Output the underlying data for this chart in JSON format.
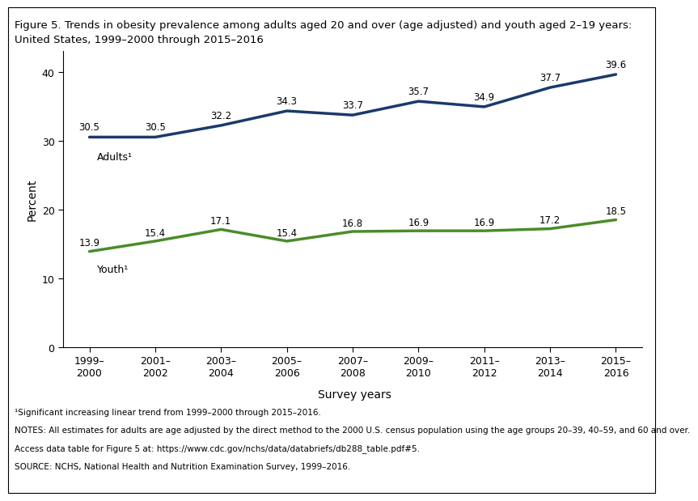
{
  "title_line1": "Figure 5. Trends in obesity prevalence among adults aged 20 and over (age adjusted) and youth aged 2–19 years:",
  "title_line2": "United States, 1999–2000 through 2015–2016",
  "xlabel": "Survey years",
  "ylabel": "Percent",
  "x_labels": [
    "1999–\n2000",
    "2001–\n2002",
    "2003–\n2004",
    "2005–\n2006",
    "2007–\n2008",
    "2009–\n2010",
    "2011–\n2012",
    "2013–\n2014",
    "2015–\n2016"
  ],
  "adults_values": [
    30.5,
    30.5,
    32.2,
    34.3,
    33.7,
    35.7,
    34.9,
    37.7,
    39.6
  ],
  "youth_values": [
    13.9,
    15.4,
    17.1,
    15.4,
    16.8,
    16.9,
    16.9,
    17.2,
    18.5
  ],
  "adults_color": "#1a3a6b",
  "youth_color": "#4a8c2a",
  "adults_label": "Adults¹",
  "youth_label": "Youth¹",
  "ylim": [
    0,
    43
  ],
  "yticks": [
    0,
    10,
    20,
    30,
    40
  ],
  "line_width": 2.5,
  "footnote1": "¹Significant increasing linear trend from 1999–2000 through 2015–2016.",
  "footnote2": "NOTES: All estimates for adults are age adjusted by the direct method to the 2000 U.S. census population using the age groups 20–39, 40–59, and 60 and over.",
  "footnote3": "Access data table for Figure 5 at: https://www.cdc.gov/nchs/data/databriefs/db288_table.pdf#5.",
  "footnote4": "SOURCE: NCHS, National Health and Nutrition Examination Survey, 1999–2016.",
  "bg_color": "#ffffff",
  "tick_label_fontsize": 9,
  "title_fontsize": 9.5,
  "annotation_fontsize": 8.5,
  "axis_label_fontsize": 10,
  "line_label_fontsize": 9,
  "footnote_fontsize": 7.5
}
